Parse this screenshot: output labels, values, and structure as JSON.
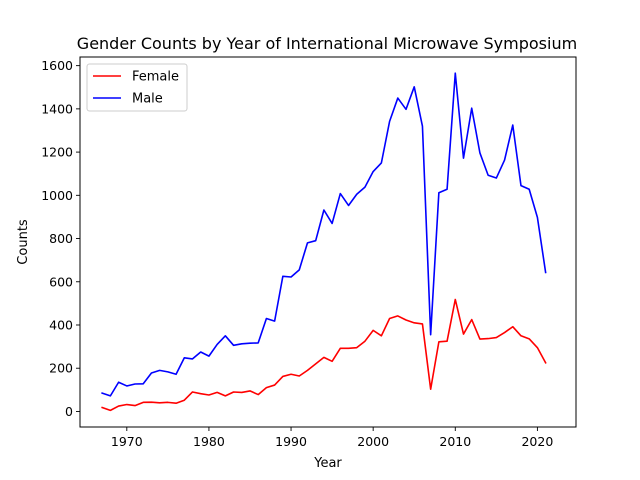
{
  "chart_data": {
    "type": "line",
    "title": "Gender Counts by Year of International Microwave Symposium",
    "xlabel": "Year",
    "ylabel": "Counts",
    "xlim": [
      1964.3,
      2024.7
    ],
    "ylim": [
      -72,
      1640
    ],
    "xticks": [
      1970,
      1980,
      1990,
      2000,
      2010,
      2020
    ],
    "yticks": [
      0,
      200,
      400,
      600,
      800,
      1000,
      1200,
      1400,
      1600
    ],
    "grid": false,
    "legend_position": "top-left",
    "x": [
      1967,
      1968,
      1969,
      1970,
      1971,
      1972,
      1973,
      1974,
      1975,
      1976,
      1977,
      1978,
      1979,
      1980,
      1981,
      1982,
      1983,
      1984,
      1985,
      1986,
      1987,
      1988,
      1989,
      1990,
      1991,
      1992,
      1993,
      1994,
      1995,
      1996,
      1997,
      1998,
      1999,
      2000,
      2001,
      2002,
      2003,
      2004,
      2005,
      2006,
      2007,
      2008,
      2009,
      2010,
      2011,
      2012,
      2013,
      2014,
      2015,
      2016,
      2017,
      2018,
      2019,
      2020,
      2021
    ],
    "series": [
      {
        "name": "Female",
        "color": "#ff0000",
        "values": [
          18,
          5,
          25,
          32,
          27,
          42,
          43,
          40,
          42,
          38,
          52,
          90,
          82,
          76,
          88,
          72,
          90,
          88,
          95,
          78,
          110,
          122,
          162,
          172,
          164,
          190,
          220,
          250,
          232,
          292,
          292,
          295,
          325,
          375,
          350,
          430,
          442,
          423,
          410,
          405,
          103,
          322,
          325,
          518,
          358,
          425,
          335,
          337,
          342,
          365,
          392,
          350,
          336,
          295,
          225
        ]
      },
      {
        "name": "Male",
        "color": "#0000ff",
        "values": [
          85,
          72,
          135,
          118,
          127,
          128,
          178,
          190,
          183,
          172,
          248,
          243,
          275,
          256,
          310,
          350,
          306,
          313,
          316,
          317,
          430,
          418,
          625,
          622,
          655,
          780,
          790,
          932,
          870,
          1008,
          953,
          1005,
          1038,
          1110,
          1150,
          1342,
          1450,
          1398,
          1502,
          1320,
          355,
          1012,
          1028,
          1565,
          1172,
          1403,
          1196,
          1093,
          1080,
          1163,
          1325,
          1045,
          1028,
          898,
          643
        ]
      }
    ]
  }
}
